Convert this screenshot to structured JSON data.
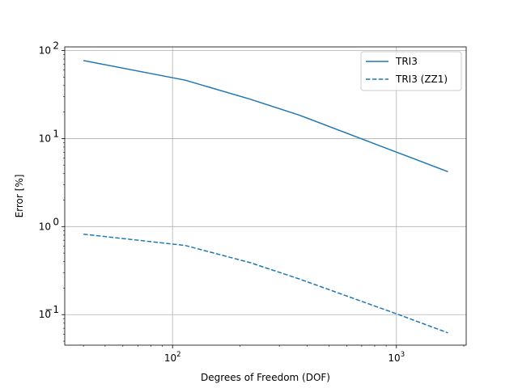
{
  "chart_data": {
    "type": "line",
    "title": "",
    "xlabel": "Degrees of Freedom (DOF)",
    "ylabel": "Error [%]",
    "xscale": "log",
    "yscale": "log",
    "xlim": [
      33,
      2050
    ],
    "ylim": [
      0.045,
      110
    ],
    "grid": true,
    "legend_position": "top-right",
    "x_ticks": [
      {
        "value": 100,
        "base": "10",
        "exp": "2"
      },
      {
        "value": 1000,
        "base": "10",
        "exp": "3"
      }
    ],
    "y_ticks": [
      {
        "value": 0.1,
        "base": "10",
        "exp": "−1"
      },
      {
        "value": 1,
        "base": "10",
        "exp": "0"
      },
      {
        "value": 10,
        "base": "10",
        "exp": "1"
      },
      {
        "value": 100,
        "base": "10",
        "exp": "2"
      }
    ],
    "series": [
      {
        "name": "TRI3",
        "color": "#1f77b4",
        "style": "solid",
        "x": [
          40,
          114,
          222,
          367,
          1003,
          1700
        ],
        "y": [
          77,
          46,
          28,
          18.5,
          7.0,
          4.2
        ]
      },
      {
        "name": "TRI3 (ZZ1)",
        "color": "#1f77b4",
        "style": "dashed",
        "x": [
          40,
          114,
          222,
          367,
          1003,
          1700
        ],
        "y": [
          0.82,
          0.61,
          0.39,
          0.255,
          0.102,
          0.062
        ]
      }
    ]
  }
}
